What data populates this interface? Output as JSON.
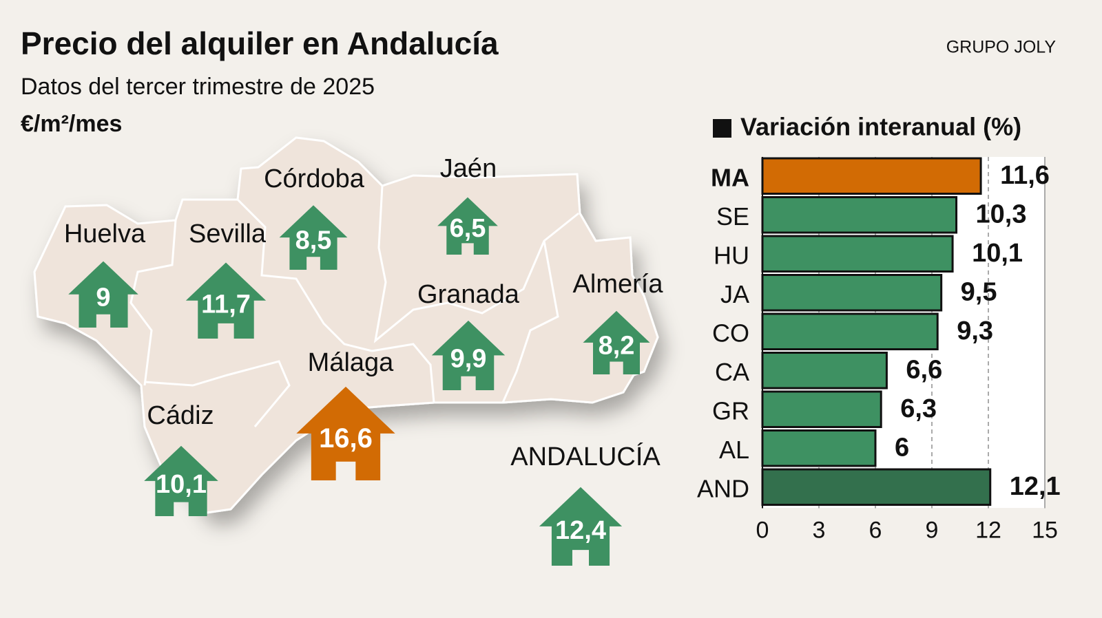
{
  "title": "Precio del alquiler en Andalucía",
  "subtitle": "Datos del tercer trimestre de 2025",
  "unit": "€/m²/mes",
  "source": "GRUPO JOLY",
  "chart_data": [
    {
      "type": "map",
      "categories": [
        "Huelva",
        "Sevilla",
        "Córdoba",
        "Jaén",
        "Granada",
        "Almería",
        "Cádiz",
        "Málaga",
        "ANDALUCÍA"
      ],
      "values": [
        9,
        11.7,
        8.5,
        6.5,
        9.9,
        8.2,
        10.1,
        16.6,
        12.4
      ],
      "value_labels": [
        "9",
        "11,7",
        "8,5",
        "6,5",
        "9,9",
        "8,2",
        "10,1",
        "16,6",
        "12,4"
      ],
      "colors": [
        "#3e9162",
        "#3e9162",
        "#3e9162",
        "#3e9162",
        "#3e9162",
        "#3e9162",
        "#3e9162",
        "#d26b04",
        "#3e9162"
      ]
    },
    {
      "type": "bar",
      "title": "Variación interanual (%)",
      "categories": [
        "MA",
        "SE",
        "HU",
        "JA",
        "CO",
        "CA",
        "GR",
        "AL",
        "AND"
      ],
      "values": [
        11.6,
        10.3,
        10.1,
        9.5,
        9.3,
        6.6,
        6.3,
        6,
        12.1
      ],
      "value_labels": [
        "11,6",
        "10,3",
        "10,1",
        "9,5",
        "9,3",
        "6,6",
        "6,3",
        "6",
        "12,1"
      ],
      "colors": [
        "#d26b04",
        "#3e9162",
        "#3e9162",
        "#3e9162",
        "#3e9162",
        "#3e9162",
        "#3e9162",
        "#3e9162",
        "#33704d"
      ],
      "xlim": [
        0,
        15
      ],
      "xticks": [
        0,
        3,
        6,
        9,
        12,
        15
      ],
      "grid": true
    }
  ]
}
